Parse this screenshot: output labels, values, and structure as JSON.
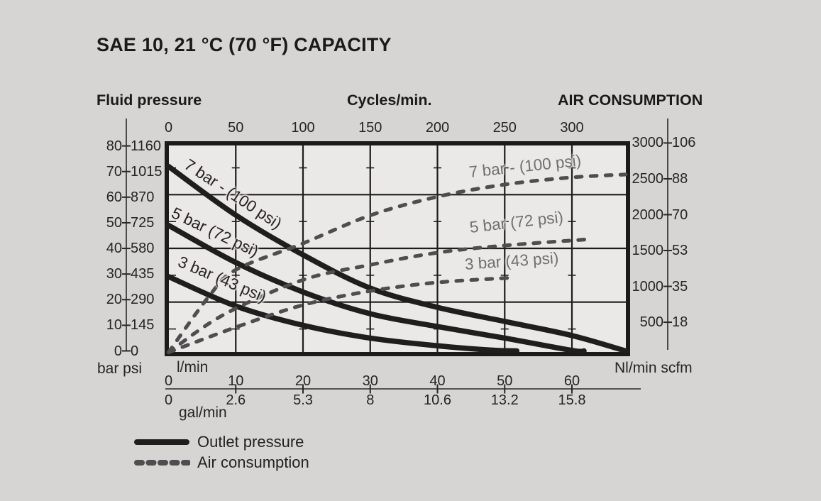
{
  "title": "SAE 10, 21 °C (70 °F) CAPACITY",
  "headers": {
    "fluid_pressure": "Fluid pressure",
    "cycles": "Cycles/min.",
    "air_consumption": "AIR CONSUMPTION"
  },
  "axis_units": {
    "bar_psi": "bar psi",
    "lmin": "l/min",
    "galmin": "gal/min",
    "nlmin_scfm": "Nl/min scfm"
  },
  "ticks": {
    "bar": [
      "80",
      "70",
      "60",
      "50",
      "40",
      "30",
      "20",
      "10",
      "0"
    ],
    "psi": [
      "1160",
      "1015",
      "870",
      "725",
      "580",
      "435",
      "290",
      "145",
      "0"
    ],
    "cycles": [
      "0",
      "50",
      "100",
      "150",
      "200",
      "250",
      "300"
    ],
    "nlmin": [
      "3000",
      "2500",
      "2000",
      "1500",
      "1000",
      "500"
    ],
    "scfm": [
      "106",
      "88",
      "70",
      "53",
      "35",
      "18"
    ],
    "lmin": [
      "0",
      "10",
      "20",
      "30",
      "40",
      "50",
      "60"
    ],
    "galmin": [
      "0",
      "2.6",
      "5.3",
      "8",
      "10.6",
      "13.2",
      "15.8"
    ]
  },
  "curve_labels": {
    "outlet": {
      "b7": "7 bar - (100 psi)",
      "b5": "5 bar (72 psi)",
      "b3": "3 bar (43 psi)"
    },
    "air": {
      "b7": "7 bar - (100 psi)",
      "b5": "5 bar (72 psi)",
      "b3": "3 bar (43 psi)"
    }
  },
  "legend": {
    "outlet": "Outlet pressure",
    "air": "Air consumption"
  },
  "colors": {
    "black_curve": "#201d1e",
    "dashed_curve": "#4e4e50",
    "gray_label": "#6f7073",
    "grid": "#1f1c1d",
    "axis": "#2a2728",
    "page_bg": "#d7d5d3",
    "plot_bg": "#ebe9e7"
  },
  "chart_data": {
    "type": "line",
    "title": "SAE 10, 21 °C (70 °F) CAPACITY",
    "grid": true,
    "legend_position": "bottom-left",
    "x_axis": {
      "top_label": "Cycles/min.",
      "top_ticks": [
        0,
        50,
        100,
        150,
        200,
        250,
        300
      ],
      "bottom_units": [
        "l/min",
        "gal/min"
      ],
      "lmin_ticks": [
        0,
        10,
        20,
        30,
        40,
        50,
        60
      ],
      "galmin_ticks": [
        0,
        2.6,
        5.3,
        8,
        10.6,
        13.2,
        15.8
      ],
      "lmin_range": [
        0,
        68
      ]
    },
    "y_axis_left": {
      "label": "Fluid pressure",
      "units": [
        "bar",
        "psi"
      ],
      "bar_ticks": [
        0,
        10,
        20,
        30,
        40,
        50,
        60,
        70,
        80
      ],
      "psi_ticks": [
        0,
        145,
        290,
        435,
        580,
        725,
        870,
        1015,
        1160
      ],
      "bar_range": [
        0,
        80
      ]
    },
    "y_axis_right": {
      "label": "AIR CONSUMPTION",
      "units": [
        "Nl/min",
        "scfm"
      ],
      "nlmin_ticks": [
        500,
        1000,
        1500,
        2000,
        2500,
        3000
      ],
      "scfm_ticks": [
        18,
        35,
        53,
        70,
        88,
        106
      ],
      "nlmin_range": [
        0,
        3000
      ]
    },
    "series": [
      {
        "name": "Outlet pressure 7 bar - (100 psi)",
        "group": "outlet_pressure",
        "style": "solid",
        "y_axis": "bar",
        "points": [
          [
            0,
            72
          ],
          [
            10,
            53
          ],
          [
            20,
            37.5
          ],
          [
            30,
            24.5
          ],
          [
            40,
            17
          ],
          [
            50,
            11.5
          ],
          [
            60,
            6
          ],
          [
            68,
            0
          ]
        ]
      },
      {
        "name": "Outlet pressure 5 bar (72 psi)",
        "group": "outlet_pressure",
        "style": "solid",
        "y_axis": "bar",
        "points": [
          [
            0,
            49
          ],
          [
            10,
            34.5
          ],
          [
            20,
            23
          ],
          [
            30,
            14.5
          ],
          [
            40,
            9.5
          ],
          [
            50,
            5
          ],
          [
            60,
            0.2
          ],
          [
            61.8,
            0
          ]
        ]
      },
      {
        "name": "Outlet pressure 3 bar (43 psi)",
        "group": "outlet_pressure",
        "style": "solid",
        "y_axis": "bar",
        "points": [
          [
            0,
            29
          ],
          [
            10,
            17.5
          ],
          [
            20,
            10
          ],
          [
            30,
            5
          ],
          [
            40,
            2
          ],
          [
            48,
            0.3
          ],
          [
            51.8,
            0
          ]
        ]
      },
      {
        "name": "Air consumption 7 bar - (100 psi)",
        "group": "air_consumption",
        "style": "dashed",
        "y_axis": "nlmin",
        "points": [
          [
            0,
            80
          ],
          [
            6,
            860
          ],
          [
            10,
            1230
          ],
          [
            20,
            1600
          ],
          [
            30,
            1990
          ],
          [
            40,
            2250
          ],
          [
            50,
            2420
          ],
          [
            60,
            2520
          ],
          [
            68,
            2560
          ]
        ]
      },
      {
        "name": "Air consumption 5 bar (72 psi)",
        "group": "air_consumption",
        "style": "dashed",
        "y_axis": "nlmin",
        "points": [
          [
            0,
            80
          ],
          [
            8.3,
            610
          ],
          [
            20,
            1090
          ],
          [
            30,
            1300
          ],
          [
            40,
            1470
          ],
          [
            50,
            1570
          ],
          [
            63,
            1660
          ]
        ]
      },
      {
        "name": "Air consumption 3 bar (43 psi)",
        "group": "air_consumption",
        "style": "dashed",
        "y_axis": "nlmin",
        "points": [
          [
            0,
            80
          ],
          [
            10,
            430
          ],
          [
            20,
            740
          ],
          [
            30,
            935
          ],
          [
            40,
            1055
          ],
          [
            51,
            1120
          ]
        ]
      }
    ]
  }
}
